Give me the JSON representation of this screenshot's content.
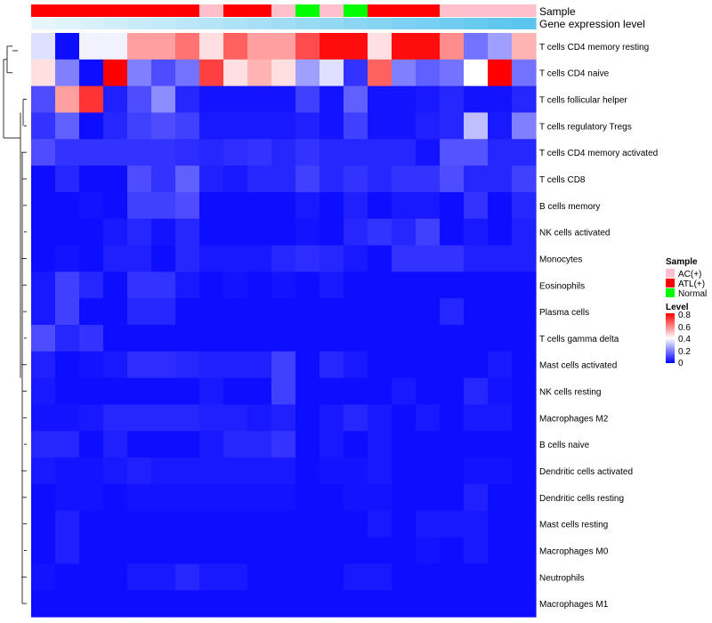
{
  "chart_data": {
    "type": "heatmap",
    "annotations": {
      "sample_track_label": "Sample",
      "gene_track_label": "Gene expression level",
      "sample_groups": [
        "ATL(+)",
        "ATL(+)",
        "ATL(+)",
        "ATL(+)",
        "ATL(+)",
        "ATL(+)",
        "ATL(+)",
        "AC(+)",
        "ATL(+)",
        "ATL(+)",
        "AC(+)",
        "Normal",
        "AC(+)",
        "Normal",
        "ATL(+)",
        "ATL(+)",
        "ATL(+)",
        "AC(+)",
        "AC(+)",
        "AC(+)",
        "AC(+)"
      ],
      "gene_expression_level": [
        0.0,
        0.05,
        0.1,
        0.15,
        0.2,
        0.25,
        0.3,
        0.35,
        0.4,
        0.45,
        0.5,
        0.55,
        0.6,
        0.65,
        0.7,
        0.75,
        0.8,
        0.85,
        0.9,
        0.95,
        1.0
      ]
    },
    "rows": [
      "T cells CD4 memory resting",
      "T cells CD4 naive",
      "T cells follicular helper",
      "T cells regulatory  Tregs",
      "T cells CD4 memory activated",
      "T cells CD8",
      "B cells memory",
      "NK cells activated",
      "Monocytes",
      "Eosinophils",
      "Plasma cells",
      "T cells gamma delta",
      "Mast cells activated",
      "NK cells resting",
      "Macrophages M2",
      "B cells naive",
      "Dendritic cells activated",
      "Dendritic cells resting",
      "Mast cells resting",
      "Macrophages M0",
      "Neutrophils",
      "Macrophages M1"
    ],
    "values": [
      [
        0.35,
        0.02,
        0.38,
        0.38,
        0.55,
        0.55,
        0.62,
        0.45,
        0.65,
        0.55,
        0.55,
        0.68,
        0.78,
        0.78,
        0.45,
        0.78,
        0.78,
        0.58,
        0.18,
        0.25,
        0.52
      ],
      [
        0.45,
        0.2,
        0.02,
        0.8,
        0.2,
        0.12,
        0.18,
        0.7,
        0.45,
        0.52,
        0.45,
        0.25,
        0.35,
        0.08,
        0.65,
        0.2,
        0.15,
        0.18,
        0.4,
        0.8,
        0.18
      ],
      [
        0.12,
        0.55,
        0.72,
        0.05,
        0.12,
        0.22,
        0.06,
        0.03,
        0.03,
        0.03,
        0.03,
        0.1,
        0.03,
        0.15,
        0.03,
        0.03,
        0.04,
        0.06,
        0.03,
        0.03,
        0.06
      ],
      [
        0.08,
        0.15,
        0.02,
        0.06,
        0.1,
        0.12,
        0.1,
        0.04,
        0.04,
        0.04,
        0.04,
        0.05,
        0.03,
        0.1,
        0.03,
        0.03,
        0.05,
        0.06,
        0.3,
        0.04,
        0.2
      ],
      [
        0.12,
        0.08,
        0.08,
        0.08,
        0.08,
        0.08,
        0.07,
        0.06,
        0.07,
        0.08,
        0.06,
        0.08,
        0.06,
        0.06,
        0.06,
        0.06,
        0.03,
        0.13,
        0.13,
        0.06,
        0.06
      ],
      [
        0.02,
        0.06,
        0.02,
        0.02,
        0.12,
        0.08,
        0.15,
        0.05,
        0.04,
        0.06,
        0.06,
        0.1,
        0.06,
        0.08,
        0.06,
        0.08,
        0.08,
        0.12,
        0.06,
        0.06,
        0.1
      ],
      [
        0.02,
        0.02,
        0.03,
        0.02,
        0.1,
        0.1,
        0.12,
        0.02,
        0.02,
        0.02,
        0.02,
        0.04,
        0.02,
        0.05,
        0.02,
        0.04,
        0.04,
        0.02,
        0.08,
        0.02,
        0.06
      ],
      [
        0.02,
        0.02,
        0.02,
        0.04,
        0.06,
        0.03,
        0.06,
        0.02,
        0.02,
        0.02,
        0.02,
        0.03,
        0.02,
        0.06,
        0.08,
        0.06,
        0.1,
        0.02,
        0.04,
        0.02,
        0.05
      ],
      [
        0.02,
        0.03,
        0.02,
        0.05,
        0.05,
        0.02,
        0.06,
        0.04,
        0.04,
        0.04,
        0.06,
        0.07,
        0.06,
        0.04,
        0.02,
        0.08,
        0.08,
        0.08,
        0.05,
        0.05,
        0.05
      ],
      [
        0.04,
        0.1,
        0.06,
        0.02,
        0.08,
        0.08,
        0.04,
        0.02,
        0.03,
        0.02,
        0.03,
        0.02,
        0.04,
        0.02,
        0.02,
        0.02,
        0.02,
        0.02,
        0.02,
        0.02,
        0.02
      ],
      [
        0.04,
        0.1,
        0.02,
        0.02,
        0.06,
        0.06,
        0.02,
        0.02,
        0.02,
        0.02,
        0.02,
        0.02,
        0.02,
        0.02,
        0.02,
        0.02,
        0.02,
        0.06,
        0.02,
        0.02,
        0.02
      ],
      [
        0.12,
        0.06,
        0.08,
        0.02,
        0.02,
        0.02,
        0.02,
        0.02,
        0.02,
        0.02,
        0.02,
        0.02,
        0.02,
        0.02,
        0.02,
        0.02,
        0.02,
        0.02,
        0.02,
        0.02,
        0.02
      ],
      [
        0.05,
        0.02,
        0.03,
        0.04,
        0.07,
        0.07,
        0.06,
        0.05,
        0.05,
        0.05,
        0.1,
        0.02,
        0.06,
        0.04,
        0.02,
        0.02,
        0.02,
        0.02,
        0.02,
        0.04,
        0.02
      ],
      [
        0.04,
        0.02,
        0.02,
        0.02,
        0.02,
        0.02,
        0.02,
        0.04,
        0.02,
        0.02,
        0.1,
        0.02,
        0.02,
        0.02,
        0.02,
        0.04,
        0.02,
        0.02,
        0.06,
        0.03,
        0.02
      ],
      [
        0.03,
        0.03,
        0.04,
        0.06,
        0.06,
        0.06,
        0.06,
        0.05,
        0.05,
        0.04,
        0.05,
        0.02,
        0.04,
        0.06,
        0.04,
        0.02,
        0.04,
        0.02,
        0.04,
        0.04,
        0.02
      ],
      [
        0.06,
        0.06,
        0.02,
        0.05,
        0.02,
        0.02,
        0.02,
        0.04,
        0.06,
        0.06,
        0.08,
        0.02,
        0.04,
        0.02,
        0.04,
        0.02,
        0.02,
        0.02,
        0.02,
        0.02,
        0.02
      ],
      [
        0.04,
        0.03,
        0.03,
        0.04,
        0.05,
        0.04,
        0.04,
        0.04,
        0.04,
        0.04,
        0.04,
        0.02,
        0.03,
        0.03,
        0.04,
        0.02,
        0.02,
        0.02,
        0.03,
        0.03,
        0.02
      ],
      [
        0.02,
        0.03,
        0.03,
        0.02,
        0.03,
        0.03,
        0.03,
        0.03,
        0.03,
        0.03,
        0.03,
        0.02,
        0.02,
        0.03,
        0.03,
        0.02,
        0.02,
        0.02,
        0.05,
        0.02,
        0.02
      ],
      [
        0.02,
        0.05,
        0.02,
        0.02,
        0.02,
        0.02,
        0.02,
        0.02,
        0.02,
        0.02,
        0.02,
        0.02,
        0.02,
        0.02,
        0.04,
        0.02,
        0.04,
        0.04,
        0.04,
        0.02,
        0.02
      ],
      [
        0.02,
        0.05,
        0.02,
        0.02,
        0.02,
        0.02,
        0.02,
        0.02,
        0.02,
        0.02,
        0.02,
        0.02,
        0.02,
        0.02,
        0.02,
        0.02,
        0.03,
        0.02,
        0.04,
        0.02,
        0.02
      ],
      [
        0.03,
        0.02,
        0.02,
        0.02,
        0.04,
        0.04,
        0.06,
        0.04,
        0.04,
        0.02,
        0.02,
        0.02,
        0.02,
        0.04,
        0.04,
        0.02,
        0.02,
        0.02,
        0.02,
        0.02,
        0.02
      ],
      [
        0.02,
        0.02,
        0.02,
        0.02,
        0.02,
        0.02,
        0.02,
        0.02,
        0.02,
        0.02,
        0.02,
        0.02,
        0.02,
        0.02,
        0.02,
        0.02,
        0.02,
        0.02,
        0.02,
        0.02,
        0.02
      ]
    ],
    "legend": {
      "sample_title": "Sample",
      "sample_entries": [
        {
          "label": "AC(+)",
          "color": "#ffc0cb"
        },
        {
          "label": "ATL(+)",
          "color": "#ff0000"
        },
        {
          "label": "Normal",
          "color": "#00ff00"
        }
      ],
      "level_title": "Level",
      "level_ticks": [
        "0.8",
        "0.6",
        "0.4",
        "0.2",
        "0"
      ],
      "level_range": [
        0,
        0.8
      ],
      "placement": "right"
    },
    "color_scale": {
      "low": "#0000ff",
      "mid": "#ffffff",
      "high": "#ff0000"
    },
    "gene_track_colors": {
      "low": "#e6f6fc",
      "high": "#5bc5ee"
    },
    "dendrogram": "rows"
  }
}
